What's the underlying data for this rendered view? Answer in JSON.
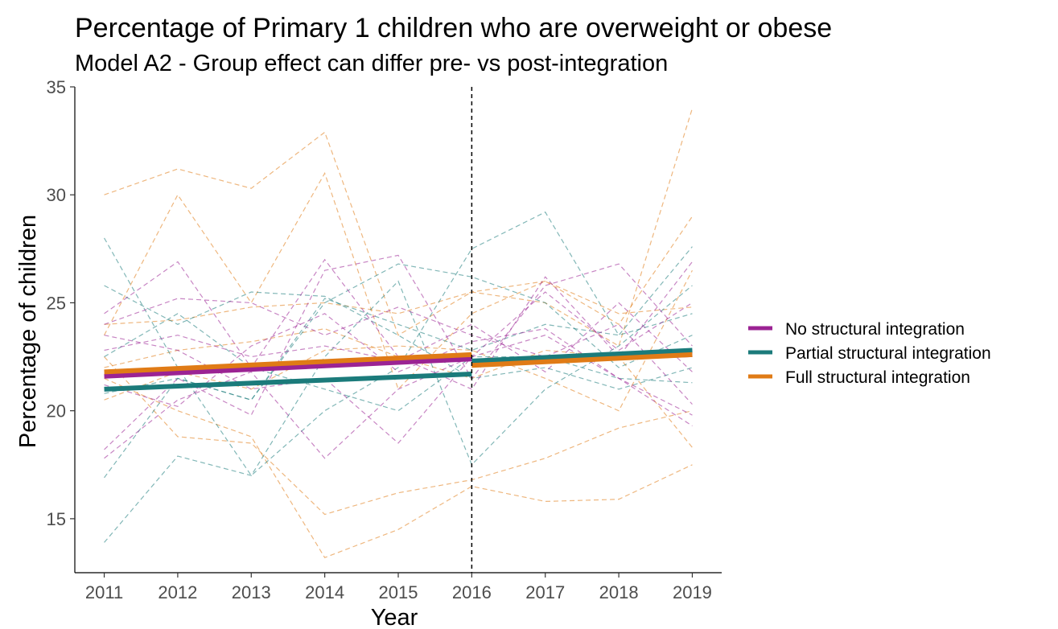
{
  "chart_data": {
    "type": "line",
    "title": "Percentage of Primary 1 children who are overweight or obese",
    "subtitle": "Model A2 - Group effect can differ pre- vs post-integration",
    "xlabel": "Year",
    "ylabel": "Percentage of children",
    "xlim": [
      2010.6,
      2019.4
    ],
    "ylim": [
      12.5,
      35
    ],
    "x_ticks": [
      "2011",
      "2012",
      "2013",
      "2014",
      "2015",
      "2016",
      "2017",
      "2018",
      "2019"
    ],
    "y_ticks": [
      "15",
      "20",
      "25",
      "30",
      "35"
    ],
    "vline": {
      "x": 2016,
      "style": "dashed",
      "color": "#000000"
    },
    "grid": false,
    "legend_position": "right",
    "colors": {
      "none": "#9b2393",
      "partial": "#1b7b7b",
      "full": "#e07b16"
    },
    "series": [
      {
        "name": "No structural integration",
        "key": "none",
        "kind": "fitted",
        "segments": [
          {
            "x": [
              2011,
              2016
            ],
            "y": [
              21.6,
              22.4
            ]
          },
          {
            "x": [
              2016,
              2019
            ],
            "y": [
              22.2,
              22.6
            ]
          }
        ]
      },
      {
        "name": "Partial structural integration",
        "key": "partial",
        "kind": "fitted",
        "segments": [
          {
            "x": [
              2011,
              2016
            ],
            "y": [
              21.0,
              21.7
            ]
          },
          {
            "x": [
              2016,
              2019
            ],
            "y": [
              22.3,
              22.8
            ]
          }
        ]
      },
      {
        "name": "Full structural integration",
        "key": "full",
        "kind": "fitted",
        "segments": [
          {
            "x": [
              2011,
              2016
            ],
            "y": [
              21.8,
              22.6
            ]
          },
          {
            "x": [
              2016,
              2019
            ],
            "y": [
              22.1,
              22.6
            ]
          }
        ]
      }
    ],
    "observed": {
      "x": [
        2011,
        2012,
        2013,
        2014,
        2015,
        2016,
        2017,
        2018,
        2019
      ],
      "lines": [
        {
          "key": "full",
          "y": [
            30.0,
            31.2,
            30.3,
            32.9,
            23.5,
            25.5,
            25.0,
            23.0,
            34.0
          ]
        },
        {
          "key": "full",
          "y": [
            23.5,
            30.0,
            25.0,
            31.0,
            21.0,
            24.5,
            26.0,
            24.0,
            29.0
          ]
        },
        {
          "key": "full",
          "y": [
            22.5,
            18.8,
            18.5,
            15.2,
            16.2,
            16.8,
            17.8,
            19.2,
            20.0
          ]
        },
        {
          "key": "full",
          "y": [
            21.5,
            20.0,
            18.8,
            13.2,
            14.5,
            16.5,
            15.8,
            15.9,
            17.5
          ]
        },
        {
          "key": "full",
          "y": [
            24.0,
            24.2,
            24.8,
            25.0,
            24.5,
            25.5,
            26.0,
            24.5,
            24.8
          ]
        },
        {
          "key": "full",
          "y": [
            22.0,
            22.8,
            23.2,
            23.8,
            22.5,
            21.5,
            22.8,
            22.5,
            18.3
          ]
        },
        {
          "key": "full",
          "y": [
            20.5,
            21.8,
            21.0,
            22.8,
            23.0,
            22.8,
            21.5,
            20.0,
            26.5
          ]
        },
        {
          "key": "partial",
          "y": [
            28.0,
            22.0,
            17.0,
            20.0,
            22.0,
            27.5,
            29.2,
            23.5,
            27.6
          ]
        },
        {
          "key": "partial",
          "y": [
            13.9,
            17.9,
            17.0,
            22.5,
            26.0,
            17.5,
            21.0,
            23.0,
            25.8
          ]
        },
        {
          "key": "partial",
          "y": [
            16.9,
            21.5,
            20.5,
            25.0,
            26.8,
            26.2,
            25.0,
            22.0,
            23.5
          ]
        },
        {
          "key": "partial",
          "y": [
            22.5,
            24.5,
            22.0,
            21.0,
            20.0,
            22.5,
            22.5,
            21.5,
            21.3
          ]
        },
        {
          "key": "partial",
          "y": [
            20.8,
            21.5,
            20.5,
            25.2,
            24.0,
            22.8,
            24.0,
            23.5,
            24.5
          ]
        },
        {
          "key": "partial",
          "y": [
            25.8,
            24.0,
            25.5,
            25.3,
            23.5,
            21.5,
            22.0,
            21.0,
            22.0
          ]
        },
        {
          "key": "none",
          "y": [
            24.5,
            26.9,
            22.0,
            27.0,
            22.5,
            21.0,
            26.2,
            22.5,
            26.9
          ]
        },
        {
          "key": "none",
          "y": [
            18.2,
            21.5,
            19.8,
            26.5,
            27.2,
            21.5,
            25.8,
            26.8,
            23.0
          ]
        },
        {
          "key": "none",
          "y": [
            17.8,
            20.5,
            21.8,
            17.8,
            21.0,
            22.5,
            23.5,
            21.5,
            19.8
          ]
        },
        {
          "key": "none",
          "y": [
            24.0,
            25.2,
            25.0,
            23.5,
            24.8,
            23.5,
            22.5,
            24.0,
            20.3
          ]
        },
        {
          "key": "none",
          "y": [
            23.5,
            22.8,
            21.0,
            21.5,
            18.5,
            22.5,
            25.5,
            22.8,
            25.0
          ]
        },
        {
          "key": "none",
          "y": [
            22.8,
            23.5,
            22.5,
            23.0,
            22.3,
            24.0,
            21.8,
            25.0,
            21.8
          ]
        },
        {
          "key": "none",
          "y": [
            21.2,
            20.2,
            23.0,
            24.5,
            21.8,
            23.2,
            23.8,
            21.5,
            19.3
          ]
        }
      ]
    }
  }
}
